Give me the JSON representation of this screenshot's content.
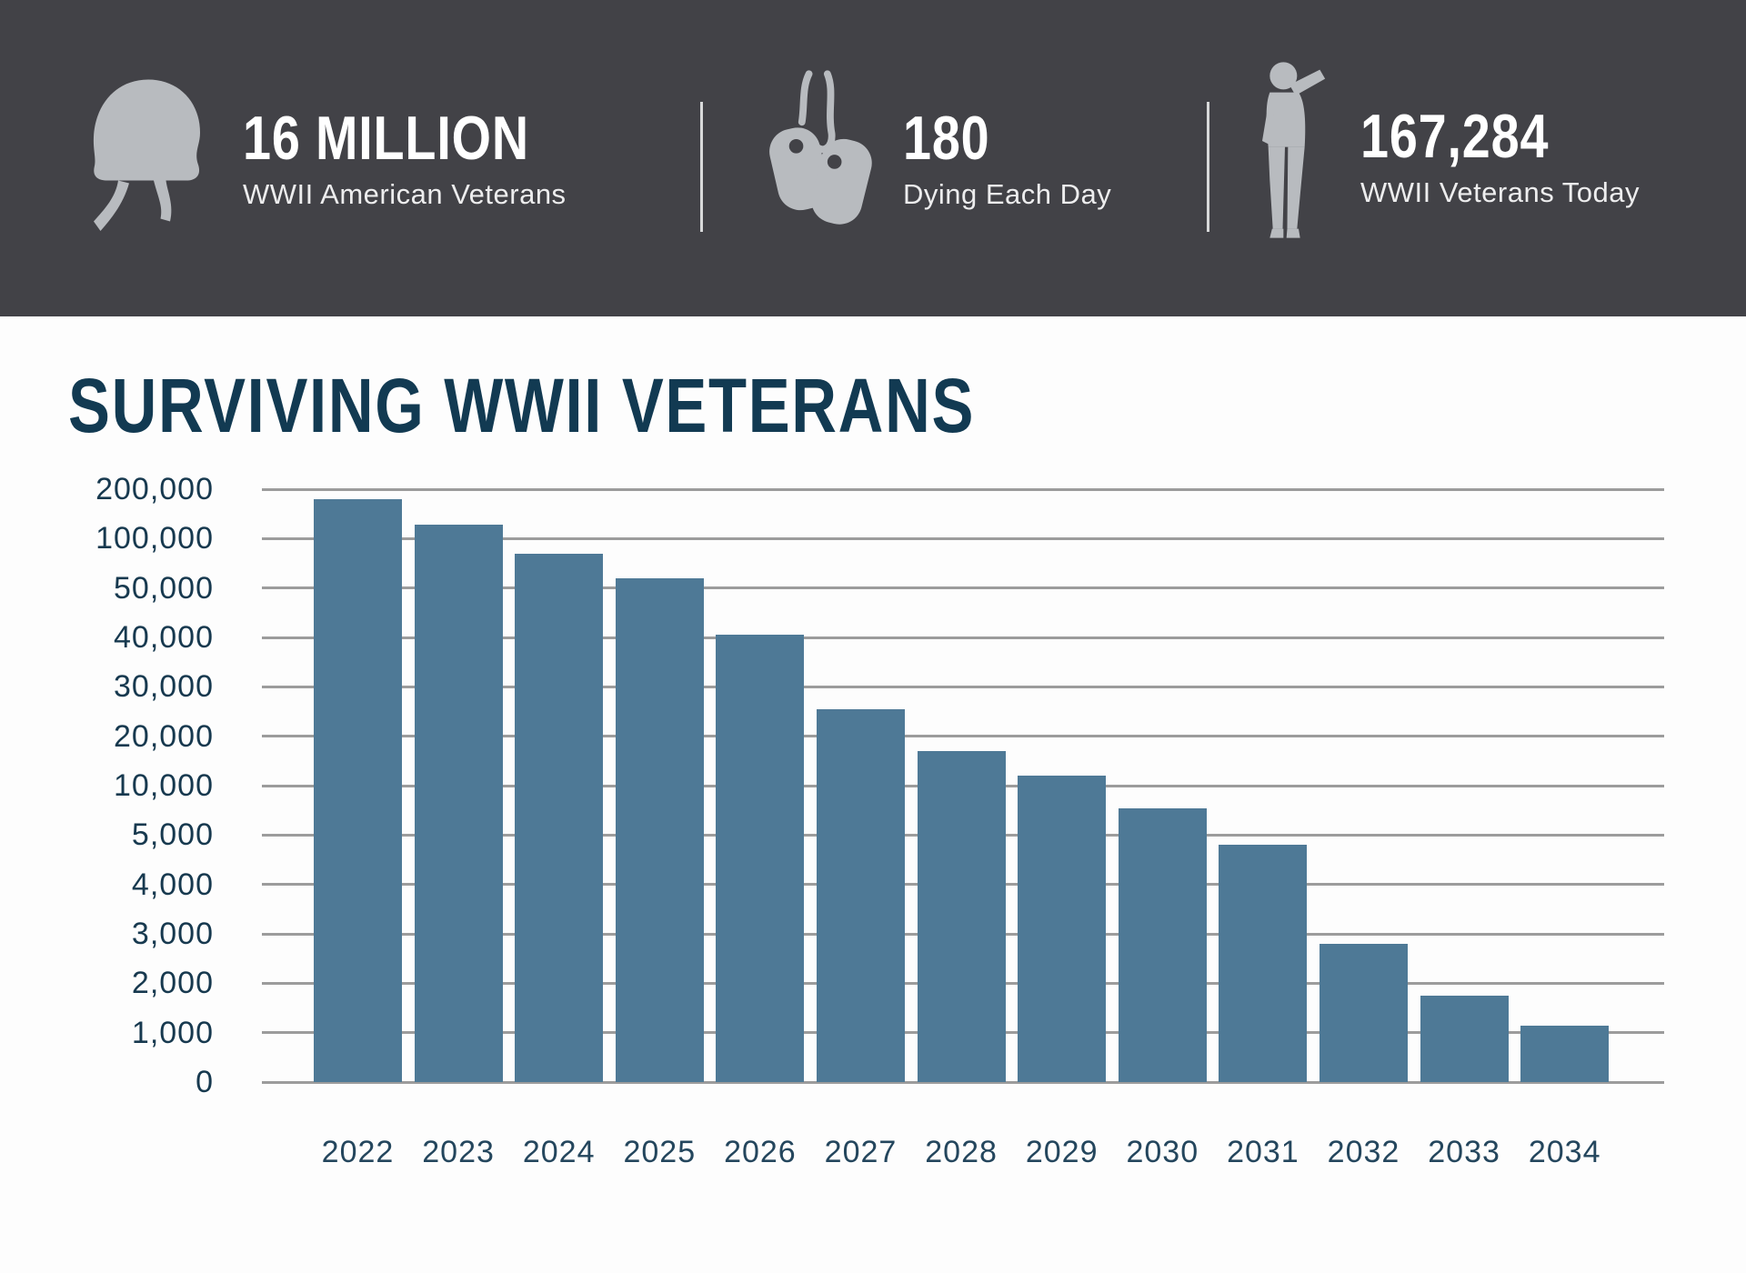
{
  "header": {
    "stats": [
      {
        "icon": "helmet-icon",
        "value": "16 MILLION",
        "label": "WWII American Veterans"
      },
      {
        "icon": "dog-tags-icon",
        "value": "180",
        "label": "Dying Each Day"
      },
      {
        "icon": "saluting-soldier-icon",
        "value": "167,284",
        "label": "WWII Veterans Today"
      }
    ]
  },
  "chart_data": {
    "type": "bar",
    "title": "SURVIVING WWII VETERANS",
    "categories": [
      "2022",
      "2023",
      "2024",
      "2025",
      "2026",
      "2027",
      "2028",
      "2029",
      "2030",
      "2031",
      "2032",
      "2033",
      "2034"
    ],
    "values": [
      180000,
      128000,
      85000,
      60000,
      40500,
      25500,
      17000,
      12000,
      7700,
      4800,
      2800,
      1750,
      1150
    ],
    "xlabel": "",
    "ylabel": "",
    "y_ticks": [
      0,
      1000,
      2000,
      3000,
      4000,
      5000,
      10000,
      20000,
      30000,
      40000,
      50000,
      100000,
      200000
    ],
    "y_scale": "ordinal-equal-spacing-between-labeled-ticks",
    "grid": true,
    "legend": "none",
    "bar_color": "#4e7996",
    "gridline_color": "#9c9c9c"
  },
  "colors": {
    "header_bg": "#424247",
    "icon_gray": "#b8bbbf",
    "divider_gray": "#d8d9da",
    "title_navy": "#123a52",
    "axis_navy": "#17394f",
    "background": "#fdfdfd"
  }
}
